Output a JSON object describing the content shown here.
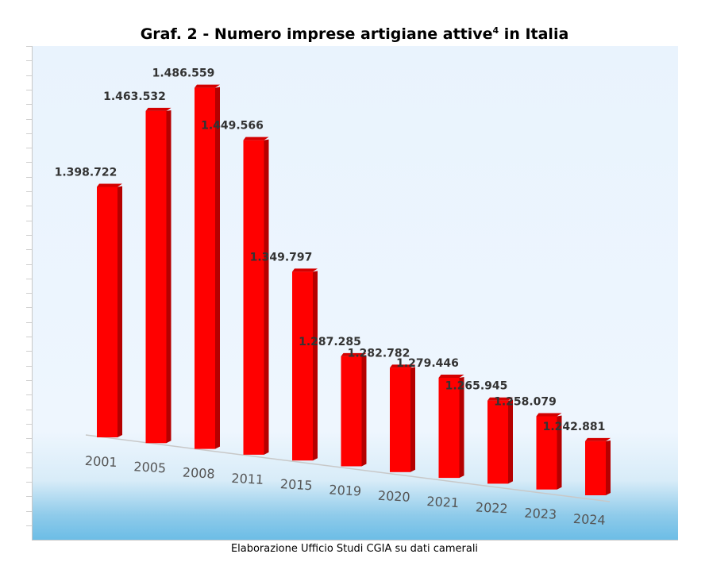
{
  "title": {
    "main": "Graf. 2 - Numero imprese artigiane attive",
    "sup": "4",
    "tail": " in Italia"
  },
  "caption": "Elaborazione Ufficio Studi CGIA su dati camerali",
  "colors": {
    "bar": "#ff0000",
    "bar_side": "#b50000",
    "bar_top": "#d40000",
    "value_label": "#333333",
    "tick_label": "#555555"
  },
  "chart_data": {
    "type": "bar",
    "title": "Graf. 2 - Numero imprese artigiane attive4 in Italia",
    "categories": [
      "2001",
      "2005",
      "2008",
      "2011",
      "2015",
      "2019",
      "2020",
      "2021",
      "2022",
      "2023",
      "2024"
    ],
    "values": [
      1398722,
      1463532,
      1486559,
      1449566,
      1349797,
      1287285,
      1282782,
      1279446,
      1265945,
      1258079,
      1242881
    ],
    "value_labels": [
      "1.398.722",
      "1.463.532",
      "1.486.559",
      "1.449.566",
      "1.349.797",
      "1.287.285",
      "1.282.782",
      "1.279.446",
      "1.265.945",
      "1.258.079",
      "1.242.881"
    ],
    "xlabel": "",
    "ylabel": "",
    "grid": false,
    "legend": "none"
  }
}
